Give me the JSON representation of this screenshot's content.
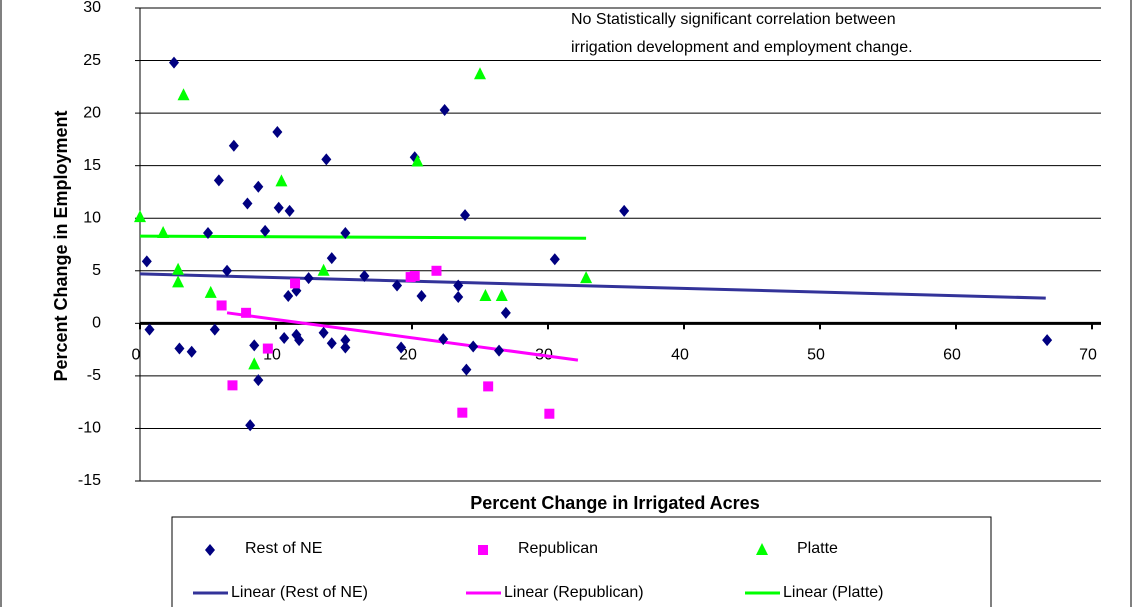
{
  "chart_data": {
    "type": "scatter",
    "y_label": "Percent Change in Employment",
    "x_label": "Percent Change in Irrigated Acres",
    "annotation": [
      "No Statistically significant correlation between",
      "irrigation development and employment change."
    ],
    "xlim": [
      0,
      70
    ],
    "xticks": [
      0,
      10,
      20,
      30,
      40,
      50,
      60,
      70
    ],
    "ylim": [
      -15,
      30
    ],
    "yticks": [
      -15,
      -10,
      -5,
      0,
      5,
      10,
      15,
      20,
      25,
      30
    ],
    "grid": true,
    "legend": "bottom",
    "series": [
      {
        "name": "Rest of NE",
        "color": "#000080",
        "marker": "diamond",
        "x": [
          0.5,
          0.7,
          2.5,
          2.9,
          3.8,
          5.0,
          5.5,
          5.8,
          6.4,
          6.9,
          7.9,
          8.4,
          8.7,
          8.7,
          9.2,
          8.1,
          10.1,
          10.2,
          10.6,
          11.0,
          10.9,
          11.5,
          11.5,
          11.7,
          12.4,
          13.7,
          14.1,
          13.5,
          14.1,
          15.1,
          15.1,
          15.1,
          16.5,
          18.9,
          19.2,
          20.2,
          20.7,
          22.3,
          22.4,
          23.4,
          23.4,
          23.9,
          24.5,
          24.0,
          26.4,
          26.9,
          30.5,
          35.6,
          66.7
        ],
        "y": [
          5.9,
          -0.6,
          24.8,
          -2.4,
          -2.7,
          8.6,
          -0.6,
          13.6,
          5.0,
          16.9,
          11.4,
          -2.1,
          13.0,
          -5.4,
          8.8,
          -9.7,
          18.2,
          11.0,
          -1.4,
          10.7,
          2.6,
          3.1,
          -1.1,
          -1.6,
          4.3,
          15.6,
          6.2,
          -0.9,
          -1.9,
          -2.3,
          8.6,
          -1.6,
          4.5,
          3.6,
          -2.3,
          15.8,
          2.6,
          -1.5,
          20.3,
          3.6,
          2.5,
          10.3,
          -2.2,
          -4.4,
          -2.6,
          1.0,
          6.1,
          10.7,
          -1.6
        ]
      },
      {
        "name": "Republican",
        "color": "#ff00ff",
        "marker": "square",
        "x": [
          6.0,
          6.8,
          7.8,
          9.4,
          11.4,
          19.9,
          20.2,
          21.8,
          23.7,
          25.6,
          30.1
        ],
        "y": [
          1.7,
          -5.9,
          1.0,
          -2.4,
          3.8,
          4.4,
          4.5,
          5.0,
          -8.5,
          -6.0,
          -8.6
        ]
      },
      {
        "name": "Platte",
        "color": "#00ff00",
        "marker": "triangle",
        "x": [
          0,
          1.7,
          2.8,
          2.8,
          3.2,
          5.2,
          8.4,
          10.4,
          13.5,
          20.4,
          25.0,
          25.4,
          26.6,
          32.8
        ],
        "y": [
          10.1,
          8.6,
          5.1,
          3.9,
          21.7,
          2.9,
          -3.9,
          13.5,
          5.0,
          15.4,
          23.7,
          2.6,
          2.6,
          4.3
        ]
      }
    ],
    "trendlines": [
      {
        "name": "Linear (Rest of NE)",
        "color": "#333399",
        "x": [
          0,
          66.6
        ],
        "y": [
          4.7,
          2.4
        ]
      },
      {
        "name": "Linear (Republican)",
        "color": "#ff00ff",
        "x": [
          6.4,
          32.2
        ],
        "y": [
          1.0,
          -3.5
        ]
      },
      {
        "name": "Linear (Platte)",
        "color": "#00ff00",
        "x": [
          0,
          32.8
        ],
        "y": [
          8.3,
          8.1
        ]
      }
    ]
  }
}
